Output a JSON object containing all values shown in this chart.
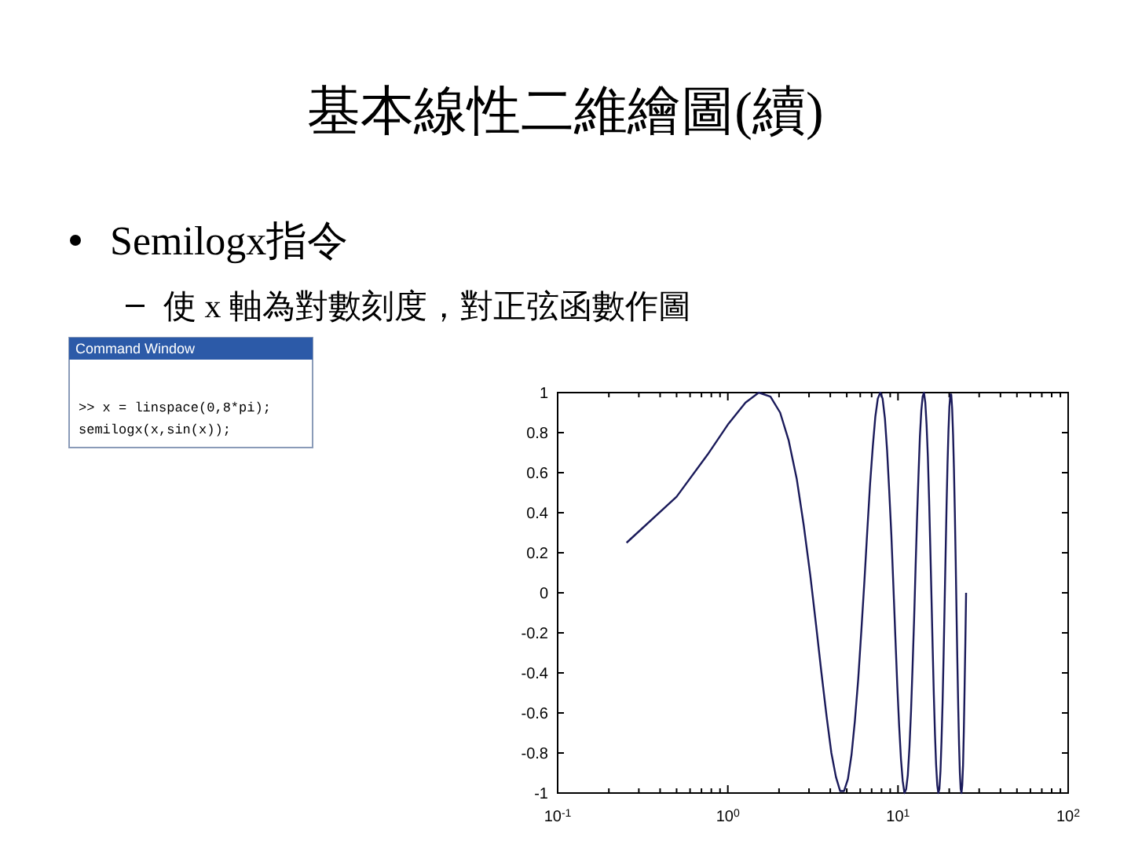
{
  "chart_data": {
    "type": "line",
    "title": "基本線性二維繪圖(續)",
    "subtitle": "Semilogx指令",
    "annotations": [
      "使 x 軸為對數刻度，對正弦函數作圖",
      "Command Window",
      ">> x = linspace(0,8*pi);",
      "semilogx(x,sin(x));"
    ],
    "log": "x",
    "grid": false,
    "line_style": "solid",
    "xlim": [
      0.1,
      100
    ],
    "xticks": [
      {
        "value": 0.1,
        "label": "10$^{-1}$"
      },
      {
        "value": 1,
        "label": "10$^{0}$"
      },
      {
        "value": 10,
        "label": "10$^{1}$"
      },
      {
        "value": 100,
        "label": "10$^{2}$"
      }
    ],
    "ylim": [
      -1,
      1
    ],
    "yticks": [
      -1,
      -0.8,
      -0.6,
      -0.4,
      -0.2,
      0,
      0.2,
      0.4,
      0.6,
      0.8,
      1
    ],
    "series": [
      {
        "color": "#1a1a5a",
        "x": [
          0.254,
          0.5,
          0.76,
          1.0,
          1.27,
          1.52,
          1.78,
          2.03,
          2.28,
          2.54,
          2.79,
          3.05,
          3.3,
          3.55,
          3.81,
          4.06,
          4.32,
          4.57,
          4.82,
          5.08,
          5.33,
          5.58,
          5.84,
          6.09,
          6.35,
          6.6,
          6.85,
          7.11,
          7.36,
          7.61,
          7.87,
          8.12,
          8.38,
          8.63,
          8.88,
          9.14,
          9.39,
          9.65,
          9.9,
          10.15,
          10.41,
          10.66,
          10.91,
          11.17,
          11.42,
          11.68,
          11.93,
          12.18,
          12.44,
          12.69,
          12.94,
          13.2,
          13.45,
          13.71,
          13.96,
          14.21,
          14.47,
          14.72,
          14.98,
          15.23,
          15.48,
          15.74,
          15.99,
          16.24,
          16.5,
          16.75,
          17.01,
          17.26,
          17.51,
          17.77,
          18.02,
          18.28,
          18.53,
          18.78,
          19.04,
          19.29,
          19.54,
          19.8,
          20.05,
          20.31,
          20.56,
          20.81,
          21.07,
          21.32,
          21.58,
          21.83,
          22.08,
          22.34,
          22.59,
          22.85,
          23.1,
          23.35,
          23.61,
          23.86,
          24.12,
          24.37,
          24.62,
          24.88,
          25.13
        ],
        "values": [
          0.25,
          0.48,
          0.69,
          0.84,
          0.95,
          1.0,
          0.98,
          0.9,
          0.76,
          0.57,
          0.34,
          0.09,
          -0.16,
          -0.4,
          -0.62,
          -0.8,
          -0.92,
          -0.99,
          -0.99,
          -0.93,
          -0.81,
          -0.64,
          -0.43,
          -0.19,
          0.06,
          0.31,
          0.54,
          0.73,
          0.88,
          0.97,
          1.0,
          0.97,
          0.87,
          0.71,
          0.51,
          0.29,
          0.04,
          -0.22,
          -0.46,
          -0.66,
          -0.83,
          -0.94,
          -1.0,
          -0.98,
          -0.91,
          -0.77,
          -0.59,
          -0.37,
          -0.13,
          0.13,
          0.37,
          0.59,
          0.78,
          0.91,
          0.98,
          1.0,
          0.95,
          0.84,
          0.68,
          0.47,
          0.23,
          -0.03,
          -0.28,
          -0.51,
          -0.71,
          -0.86,
          -0.96,
          -1.0,
          -0.98,
          -0.89,
          -0.74,
          -0.55,
          -0.32,
          -0.07,
          0.19,
          0.43,
          0.64,
          0.81,
          0.93,
          0.99,
          0.99,
          0.92,
          0.79,
          0.62,
          0.4,
          0.16,
          -0.1,
          -0.35,
          -0.57,
          -0.76,
          -0.9,
          -0.98,
          -1.0,
          -0.96,
          -0.86,
          -0.69,
          -0.48,
          -0.25,
          0
        ]
      }
    ]
  }
}
